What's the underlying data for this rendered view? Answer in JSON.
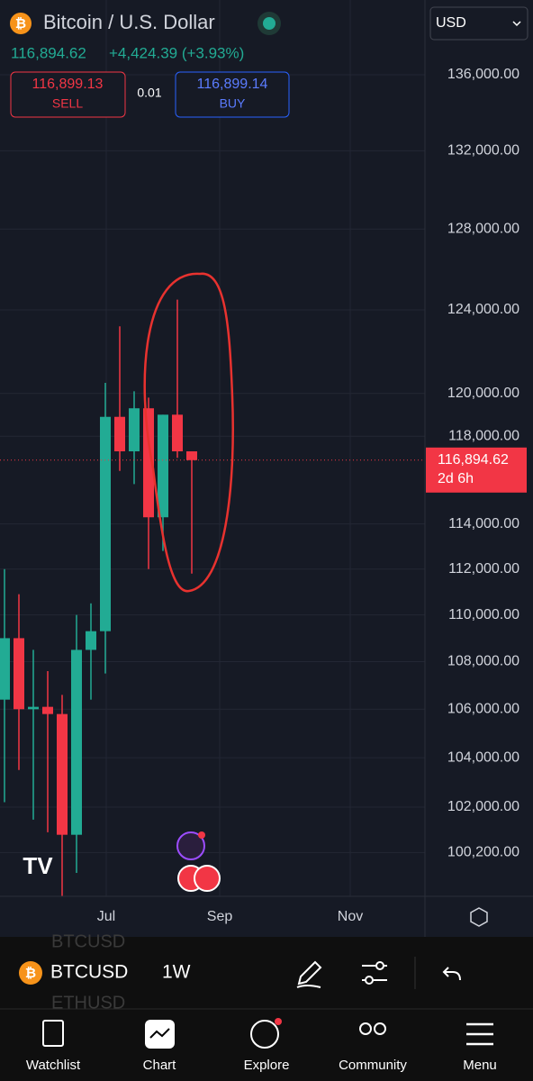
{
  "header": {
    "title": "Bitcoin / U.S. Dollar",
    "price": "116,894.62",
    "change": "+4,424.39 (+3.93%)",
    "currency": "USD"
  },
  "trade": {
    "sell_price": "116,899.13",
    "sell_label": "SELL",
    "spread": "0.01",
    "buy_price": "116,899.14",
    "buy_label": "BUY"
  },
  "chart": {
    "type": "candlestick",
    "scale": "log",
    "up_color": "#22ab94",
    "down_color": "#f23645",
    "ylim": [
      98490,
      140050
    ],
    "yticks": [
      {
        "value": 136000,
        "label": "136,000.00"
      },
      {
        "value": 132000,
        "label": "132,000.00"
      },
      {
        "value": 128000,
        "label": "128,000.00"
      },
      {
        "value": 124000,
        "label": "124,000.00"
      },
      {
        "value": 120000,
        "label": "120,000.00"
      },
      {
        "value": 118000,
        "label": "118,000.00"
      },
      {
        "value": 114000,
        "label": "114,000.00"
      },
      {
        "value": 112000,
        "label": "112,000.00"
      },
      {
        "value": 110000,
        "label": "110,000.00"
      },
      {
        "value": 108000,
        "label": "108,000.00"
      },
      {
        "value": 106000,
        "label": "106,000.00"
      },
      {
        "value": 104000,
        "label": "104,000.00"
      },
      {
        "value": 102000,
        "label": "102,000.00"
      },
      {
        "value": 100200,
        "label": "100,200.00"
      }
    ],
    "candles": [
      {
        "open": 106400,
        "high": 112000,
        "low": 102200,
        "close": 109000
      },
      {
        "open": 109000,
        "high": 110900,
        "low": 103500,
        "close": 106000
      },
      {
        "open": 106000,
        "high": 108500,
        "low": 101500,
        "close": 106100
      },
      {
        "open": 106100,
        "high": 107600,
        "low": 101000,
        "close": 105800
      },
      {
        "open": 105800,
        "high": 106600,
        "low": 98500,
        "close": 100900
      },
      {
        "open": 100900,
        "high": 110000,
        "low": 99400,
        "close": 108500
      },
      {
        "open": 108500,
        "high": 110500,
        "low": 106400,
        "close": 109300
      },
      {
        "open": 109300,
        "high": 120500,
        "low": 107500,
        "close": 118900
      },
      {
        "open": 118900,
        "high": 123200,
        "low": 116400,
        "close": 117300
      },
      {
        "open": 117300,
        "high": 120100,
        "low": 115800,
        "close": 119300
      },
      {
        "open": 119300,
        "high": 119800,
        "low": 112000,
        "close": 114300
      },
      {
        "open": 114300,
        "high": 119000,
        "low": 112800,
        "close": 119000
      },
      {
        "open": 119000,
        "high": 124500,
        "low": 117000,
        "close": 117300
      },
      {
        "open": 117300,
        "high": 117300,
        "low": 111800,
        "close": 116894.62
      }
    ],
    "current_price": 116894.62,
    "current_label": "116,894.62",
    "countdown": "2d 6h",
    "time_labels": [
      "Jul",
      "Sep",
      "Nov"
    ]
  },
  "toolbar": {
    "symbol": "BTCUSD",
    "interval": "1W",
    "ghost_above": "BTCUSD",
    "ghost_below": "ETHUSD"
  },
  "nav": [
    "Watchlist",
    "Chart",
    "Explore",
    "Community",
    "Menu"
  ]
}
